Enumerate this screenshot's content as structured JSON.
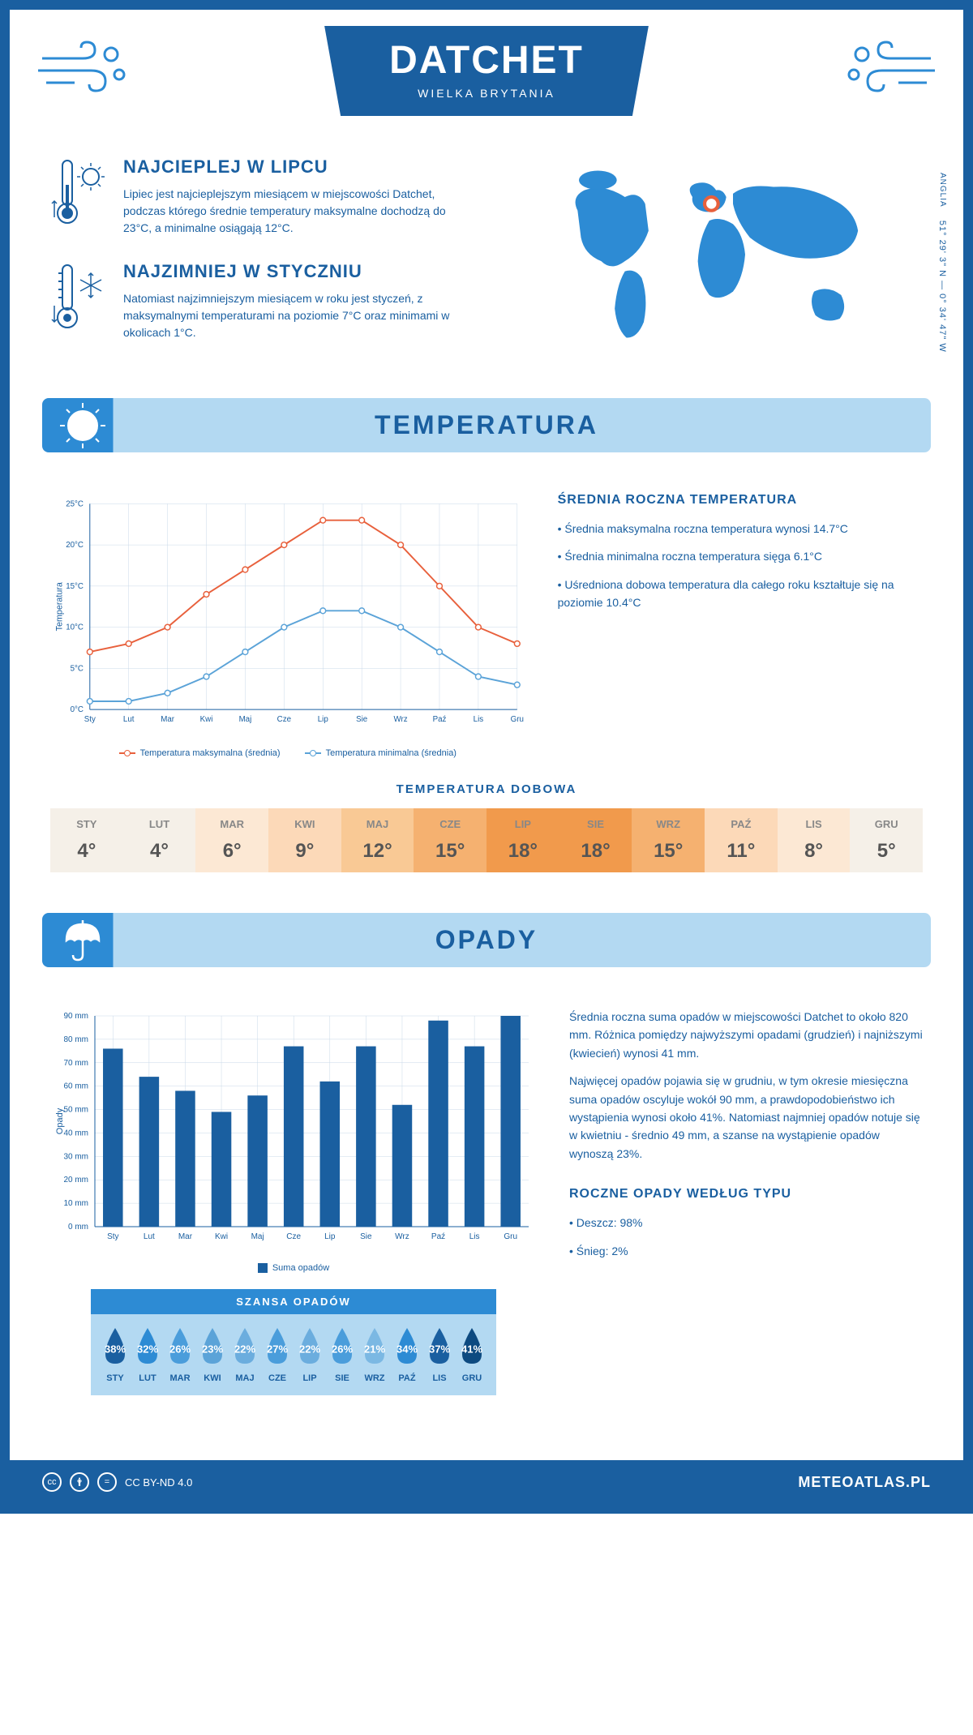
{
  "header": {
    "title": "DATCHET",
    "subtitle": "WIELKA BRYTANIA"
  },
  "coords": {
    "lat": "51° 29' 3\" N",
    "lon": "0° 34' 47\" W",
    "region": "ANGLIA"
  },
  "intro": {
    "warmest": {
      "title": "NAJCIEPLEJ W LIPCU",
      "text": "Lipiec jest najcieplejszym miesiącem w miejscowości Datchet, podczas którego średnie temperatury maksymalne dochodzą do 23°C, a minimalne osiągają 12°C."
    },
    "coldest": {
      "title": "NAJZIMNIEJ W STYCZNIU",
      "text": "Natomiast najzimniejszym miesiącem w roku jest styczeń, z maksymalnymi temperaturami na poziomie 7°C oraz minimami w okolicach 1°C."
    }
  },
  "temperature": {
    "section_title": "TEMPERATURA",
    "chart": {
      "months": [
        "Sty",
        "Lut",
        "Mar",
        "Kwi",
        "Maj",
        "Cze",
        "Lip",
        "Sie",
        "Wrz",
        "Paź",
        "Lis",
        "Gru"
      ],
      "max_values": [
        7,
        8,
        10,
        14,
        17,
        20,
        23,
        23,
        20,
        15,
        10,
        8
      ],
      "min_values": [
        1,
        1,
        2,
        4,
        7,
        10,
        12,
        12,
        10,
        7,
        4,
        3
      ],
      "max_color": "#e8603c",
      "min_color": "#5ba3d8",
      "ylim": [
        0,
        25
      ],
      "ytick_step": 5,
      "ylabel": "Temperatura",
      "grid_color": "#c8d8e8",
      "y_unit": "°C"
    },
    "legend": {
      "max_label": "Temperatura maksymalna (średnia)",
      "min_label": "Temperatura minimalna (średnia)"
    },
    "stats": {
      "title": "ŚREDNIA ROCZNA TEMPERATURA",
      "line1": "• Średnia maksymalna roczna temperatura wynosi 14.7°C",
      "line2": "• Średnia minimalna roczna temperatura sięga 6.1°C",
      "line3": "• Uśredniona dobowa temperatura dla całego roku kształtuje się na poziomie 10.4°C"
    },
    "daily": {
      "title": "TEMPERATURA DOBOWA",
      "months": [
        "STY",
        "LUT",
        "MAR",
        "KWI",
        "MAJ",
        "CZE",
        "LIP",
        "SIE",
        "WRZ",
        "PAŹ",
        "LIS",
        "GRU"
      ],
      "values": [
        "4°",
        "4°",
        "6°",
        "9°",
        "12°",
        "15°",
        "18°",
        "18°",
        "15°",
        "11°",
        "8°",
        "5°"
      ],
      "colors": [
        "#f5f0e8",
        "#f5f0e8",
        "#fce8d4",
        "#fcd9b8",
        "#f9c995",
        "#f5b170",
        "#f19a4c",
        "#f19a4c",
        "#f5b170",
        "#fcd9b8",
        "#fce8d4",
        "#f5f0e8"
      ]
    }
  },
  "precipitation": {
    "section_title": "OPADY",
    "chart": {
      "months": [
        "Sty",
        "Lut",
        "Mar",
        "Kwi",
        "Maj",
        "Cze",
        "Lip",
        "Sie",
        "Wrz",
        "Paź",
        "Lis",
        "Gru"
      ],
      "values": [
        76,
        64,
        58,
        49,
        56,
        77,
        62,
        77,
        52,
        88,
        77,
        90
      ],
      "bar_color": "#1a5fa0",
      "ylim": [
        0,
        90
      ],
      "ytick_step": 10,
      "ylabel": "Opady",
      "y_unit": " mm",
      "grid_color": "#c8d8e8"
    },
    "legend_label": "Suma opadów",
    "text": {
      "para1": "Średnia roczna suma opadów w miejscowości Datchet to około 820 mm. Różnica pomiędzy najwyższymi opadami (grudzień) i najniższymi (kwiecień) wynosi 41 mm.",
      "para2": "Najwięcej opadów pojawia się w grudniu, w tym okresie miesięczna suma opadów oscyluje wokół 90 mm, a prawdopodobieństwo ich wystąpienia wynosi około 41%. Natomiast najmniej opadów notuje się w kwietniu - średnio 49 mm, a szanse na wystąpienie opadów wynoszą 23%."
    },
    "chance": {
      "title": "SZANSA OPADÓW",
      "months": [
        "STY",
        "LUT",
        "MAR",
        "KWI",
        "MAJ",
        "CZE",
        "LIP",
        "SIE",
        "WRZ",
        "PAŹ",
        "LIS",
        "GRU"
      ],
      "values": [
        "38%",
        "32%",
        "26%",
        "23%",
        "22%",
        "27%",
        "22%",
        "26%",
        "21%",
        "34%",
        "37%",
        "41%"
      ],
      "colors": [
        "#1a5fa0",
        "#2d8bd4",
        "#4a9ddb",
        "#5ba3d8",
        "#6badde",
        "#4a9ddb",
        "#6badde",
        "#4a9ddb",
        "#7bb8e3",
        "#2d8bd4",
        "#1a5fa0",
        "#0d4a80"
      ]
    },
    "by_type": {
      "title": "ROCZNE OPADY WEDŁUG TYPU",
      "rain": "• Deszcz: 98%",
      "snow": "• Śnieg: 2%"
    }
  },
  "footer": {
    "license": "CC BY-ND 4.0",
    "site": "METEOATLAS.PL"
  }
}
